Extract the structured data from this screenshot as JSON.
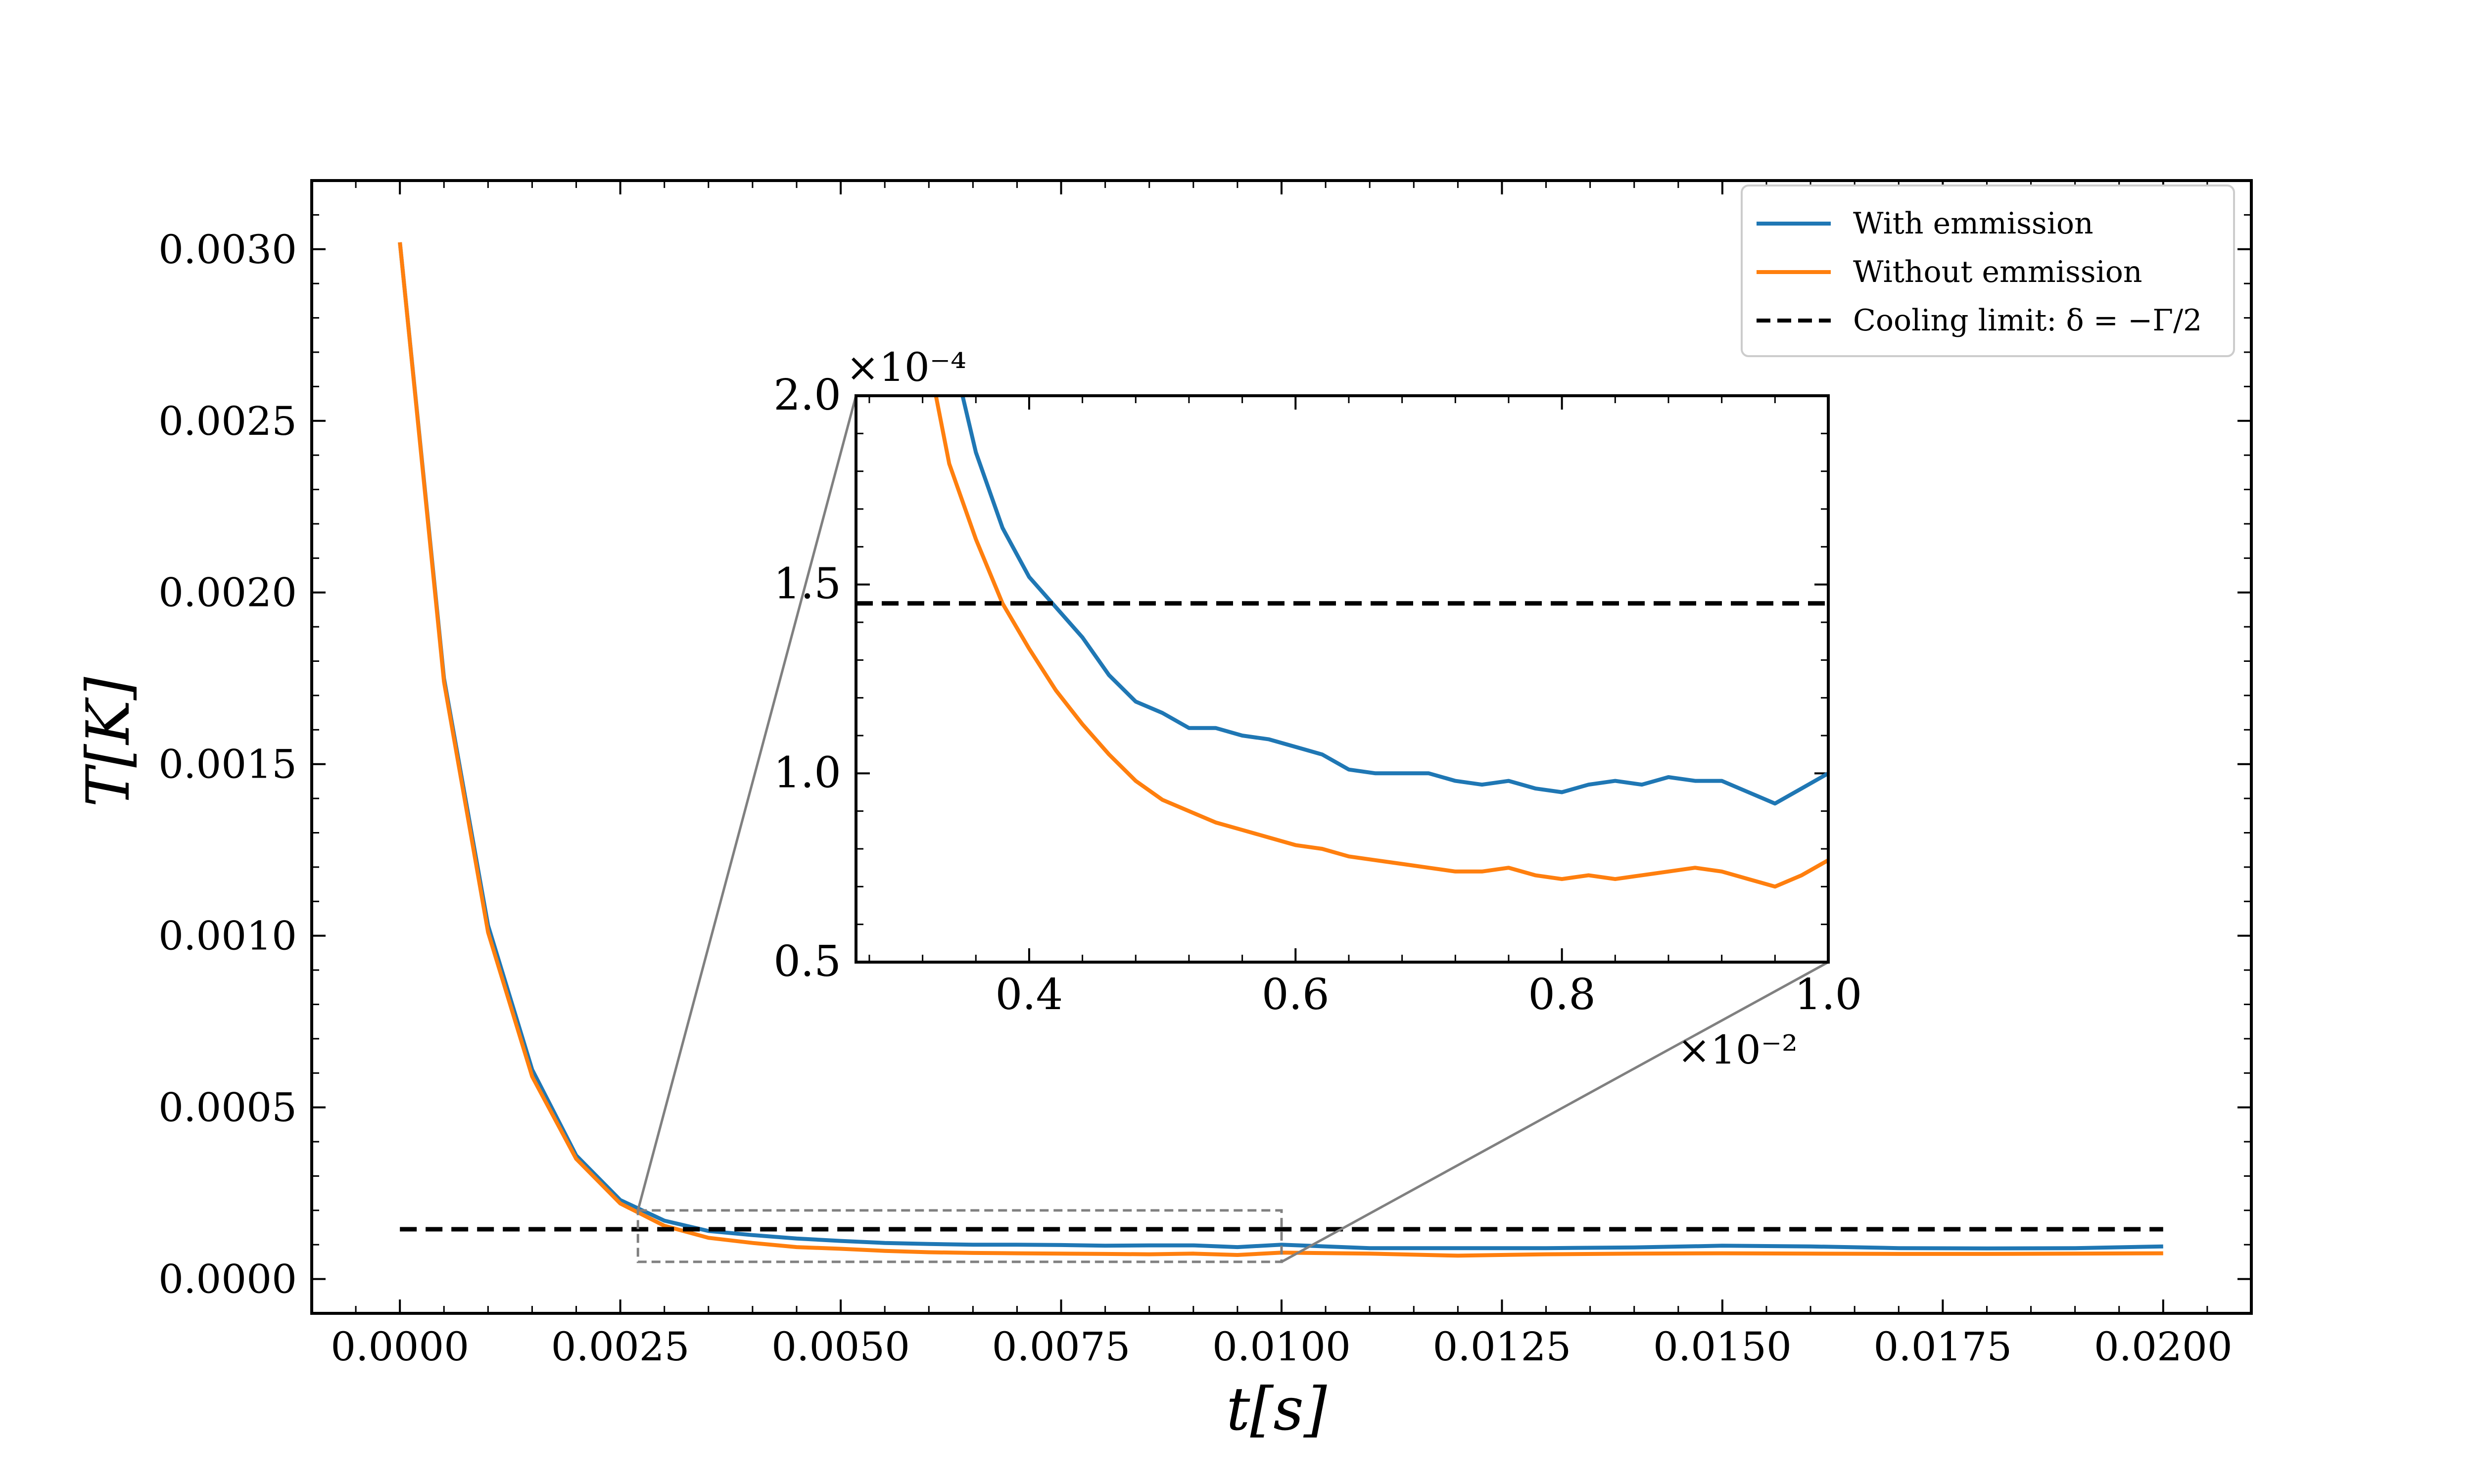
{
  "chart_data": [
    {
      "type": "line",
      "role": "main",
      "xlabel": "t[s]",
      "ylabel": "T[K]",
      "xlim": [
        -0.001,
        0.021
      ],
      "ylim": [
        -0.0001,
        0.0032
      ],
      "xticks": [
        0.0,
        0.0025,
        0.005,
        0.0075,
        0.01,
        0.0125,
        0.015,
        0.0175,
        0.02
      ],
      "xtick_labels": [
        "0.0000",
        "0.0025",
        "0.0050",
        "0.0075",
        "0.0100",
        "0.0125",
        "0.0150",
        "0.0175",
        "0.0200"
      ],
      "yticks": [
        0.0,
        0.0005,
        0.001,
        0.0015,
        0.002,
        0.0025,
        0.003
      ],
      "ytick_labels": [
        "0.0000",
        "0.0005",
        "0.0010",
        "0.0015",
        "0.0020",
        "0.0025",
        "0.0030"
      ],
      "grid": false,
      "legend_position": "top-right",
      "zoom_box": {
        "x": [
          0.0027,
          0.01
        ],
        "y": [
          5e-05,
          0.0002
        ]
      },
      "series": [
        {
          "name": "With emmission",
          "color": "#1f77b4",
          "x": [
            0.0,
            0.0005,
            0.001,
            0.0015,
            0.002,
            0.0025,
            0.003,
            0.0035,
            0.004,
            0.0045,
            0.005,
            0.0055,
            0.006,
            0.0065,
            0.007,
            0.0075,
            0.008,
            0.0085,
            0.009,
            0.0095,
            0.01,
            0.011,
            0.012,
            0.013,
            0.014,
            0.015,
            0.016,
            0.017,
            0.018,
            0.019,
            0.02
          ],
          "y": [
            0.00302,
            0.00175,
            0.00103,
            0.00061,
            0.00036,
            0.00023,
            0.00017,
            0.00014,
            0.000128,
            0.000118,
            0.000111,
            0.000105,
            0.000102,
            0.0001,
            0.0001,
            9.9e-05,
            9.7e-05,
            9.8e-05,
            9.8e-05,
            9.3e-05,
            0.0001,
            9e-05,
            9e-05,
            9e-05,
            9.2e-05,
            9.7e-05,
            9.5e-05,
            9e-05,
            8.9e-05,
            9e-05,
            9.5e-05
          ]
        },
        {
          "name": "Without emmission",
          "color": "#ff7f0e",
          "x": [
            0.0,
            0.0005,
            0.001,
            0.0015,
            0.002,
            0.0025,
            0.003,
            0.0035,
            0.004,
            0.0045,
            0.005,
            0.0055,
            0.006,
            0.0065,
            0.007,
            0.0075,
            0.008,
            0.0085,
            0.009,
            0.0095,
            0.01,
            0.011,
            0.012,
            0.013,
            0.014,
            0.015,
            0.016,
            0.017,
            0.018,
            0.019,
            0.02
          ],
          "y": [
            0.00302,
            0.00174,
            0.00101,
            0.00059,
            0.00035,
            0.00022,
            0.000155,
            0.00012,
            0.000105,
            9.3e-05,
            8.8e-05,
            8.2e-05,
            7.8e-05,
            7.6e-05,
            7.5e-05,
            7.4e-05,
            7.3e-05,
            7.2e-05,
            7.4e-05,
            7e-05,
            7.7e-05,
            7.4e-05,
            6.8e-05,
            7.2e-05,
            7.4e-05,
            7.5e-05,
            7.4e-05,
            7.3e-05,
            7.3e-05,
            7.4e-05,
            7.5e-05
          ]
        },
        {
          "name": "Cooling limit: δ = −Γ/2",
          "color": "#000000",
          "dashed": true,
          "x": [
            0.0,
            0.02
          ],
          "y": [
            0.000145,
            0.000145
          ]
        }
      ]
    },
    {
      "type": "line",
      "role": "inset",
      "xlim": [
        0.0027,
        0.01
      ],
      "ylim": [
        5e-05,
        0.0002
      ],
      "xticks": [
        0.004,
        0.006,
        0.008,
        0.01
      ],
      "xtick_labels": [
        "0.4",
        "0.6",
        "0.8",
        "1.0"
      ],
      "yticks": [
        5e-05,
        0.0001,
        0.00015,
        0.0002
      ],
      "ytick_labels": [
        "0.5",
        "1.0",
        "1.5",
        "2.0"
      ],
      "x_multiplier": "×10⁻²",
      "y_multiplier": "×10⁻⁴",
      "series": [
        {
          "name": "With emmission",
          "color": "#1f77b4",
          "x": [
            0.0035,
            0.0036,
            0.0038,
            0.004,
            0.0042,
            0.0044,
            0.0046,
            0.0048,
            0.005,
            0.0052,
            0.0054,
            0.0056,
            0.0058,
            0.006,
            0.0062,
            0.0064,
            0.0066,
            0.0068,
            0.007,
            0.0072,
            0.0074,
            0.0076,
            0.0078,
            0.008,
            0.0082,
            0.0084,
            0.0086,
            0.0088,
            0.009,
            0.0092,
            0.0094,
            0.0096,
            0.0098,
            0.01
          ],
          "y": [
            0.0002,
            0.000185,
            0.000165,
            0.000152,
            0.000144,
            0.000136,
            0.000126,
            0.000119,
            0.000116,
            0.000112,
            0.000112,
            0.00011,
            0.000109,
            0.000107,
            0.000105,
            0.000101,
            0.0001,
            0.0001,
            0.0001,
            9.8e-05,
            9.7e-05,
            9.8e-05,
            9.6e-05,
            9.5e-05,
            9.7e-05,
            9.8e-05,
            9.7e-05,
            9.9e-05,
            9.8e-05,
            9.8e-05,
            9.5e-05,
            9.2e-05,
            9.6e-05,
            0.0001
          ]
        },
        {
          "name": "Without emmission",
          "color": "#ff7f0e",
          "x": [
            0.0033,
            0.0034,
            0.0036,
            0.0038,
            0.004,
            0.0042,
            0.0044,
            0.0046,
            0.0048,
            0.005,
            0.0052,
            0.0054,
            0.0056,
            0.0058,
            0.006,
            0.0062,
            0.0064,
            0.0066,
            0.0068,
            0.007,
            0.0072,
            0.0074,
            0.0076,
            0.0078,
            0.008,
            0.0082,
            0.0084,
            0.0086,
            0.0088,
            0.009,
            0.0092,
            0.0094,
            0.0096,
            0.0098,
            0.01
          ],
          "y": [
            0.0002,
            0.000182,
            0.000162,
            0.000145,
            0.000133,
            0.000122,
            0.000113,
            0.000105,
            9.8e-05,
            9.3e-05,
            9e-05,
            8.7e-05,
            8.5e-05,
            8.3e-05,
            8.1e-05,
            8e-05,
            7.8e-05,
            7.7e-05,
            7.6e-05,
            7.5e-05,
            7.4e-05,
            7.4e-05,
            7.5e-05,
            7.3e-05,
            7.2e-05,
            7.3e-05,
            7.2e-05,
            7.3e-05,
            7.4e-05,
            7.5e-05,
            7.4e-05,
            7.2e-05,
            7e-05,
            7.3e-05,
            7.7e-05
          ]
        },
        {
          "name": "Cooling limit: δ = −Γ/2",
          "color": "#000000",
          "dashed": true,
          "x": [
            0.0027,
            0.01
          ],
          "y": [
            0.000145,
            0.000145
          ]
        }
      ]
    }
  ]
}
